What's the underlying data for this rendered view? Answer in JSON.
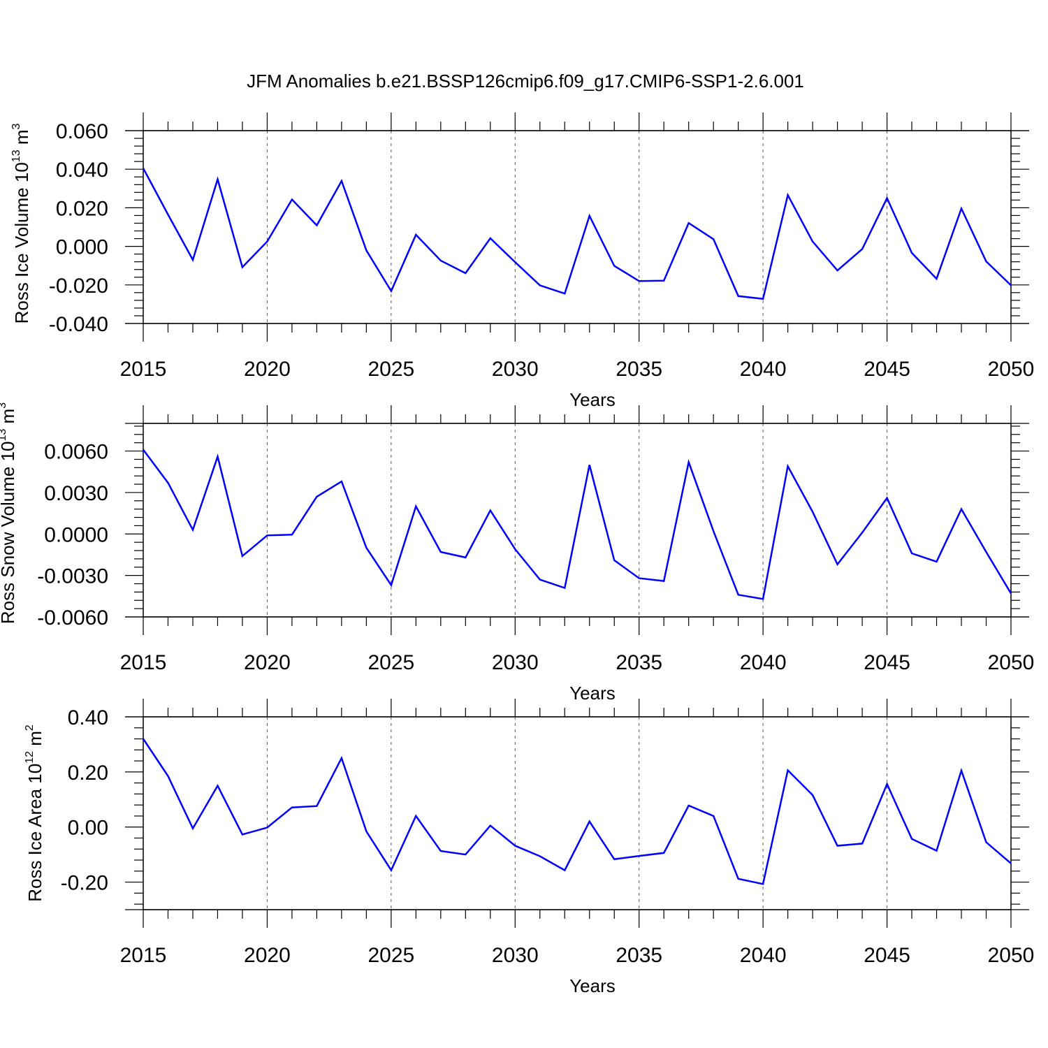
{
  "title": "JFM Anomalies b.e21.BSSP126cmip6.f09_g17.CMIP6-SSP1-2.6.001",
  "colors": {
    "series": "#0000ff",
    "frame": "#000000",
    "grid": "#555555"
  },
  "chart_data": [
    {
      "type": "line",
      "title": "",
      "xlabel": "Years",
      "ylabel": "Ross Ice Volume 10",
      "ylabel_exp": "13",
      "ylabel_unit": " m",
      "ylabel_unit_exp": "3",
      "grid": "vertical dashed at major x ticks",
      "xlim": [
        2015,
        2050
      ],
      "ylim": [
        -0.04,
        0.06
      ],
      "x_ticks": [
        2015,
        2020,
        2025,
        2030,
        2035,
        2040,
        2045,
        2050
      ],
      "x_tick_labels": [
        "2015",
        "2020",
        "2025",
        "2030",
        "2035",
        "2040",
        "2045",
        "2050"
      ],
      "y_ticks": [
        -0.04,
        -0.02,
        0.0,
        0.02,
        0.04,
        0.06
      ],
      "y_tick_labels": [
        "-0.040",
        "-0.020",
        "0.000",
        "0.020",
        "0.040",
        "0.060"
      ],
      "x": [
        2015,
        2016,
        2017,
        2018,
        2019,
        2020,
        2021,
        2022,
        2023,
        2024,
        2025,
        2026,
        2027,
        2028,
        2029,
        2030,
        2031,
        2032,
        2033,
        2034,
        2035,
        2036,
        2037,
        2038,
        2039,
        2040,
        2041,
        2042,
        2043,
        2044,
        2045,
        2046,
        2047,
        2048,
        2049,
        2050
      ],
      "values": [
        0.0405,
        0.0165,
        -0.007,
        0.0348,
        -0.0108,
        0.0025,
        0.0243,
        0.0109,
        0.0339,
        -0.0021,
        -0.0232,
        0.006,
        -0.0074,
        -0.0139,
        0.0042,
        -0.0082,
        -0.0202,
        -0.0245,
        0.0158,
        -0.0101,
        -0.018,
        -0.0178,
        0.0121,
        0.0037,
        -0.0258,
        -0.0272,
        0.0266,
        0.0025,
        -0.0125,
        -0.0014,
        0.025,
        -0.0034,
        -0.0168,
        0.0196,
        -0.0078,
        -0.0202
      ]
    },
    {
      "type": "line",
      "title": "",
      "xlabel": "Years",
      "ylabel": "Ross Snow Volume 10",
      "ylabel_exp": "13",
      "ylabel_unit": " m",
      "ylabel_unit_exp": "3",
      "grid": "vertical dashed at major x ticks",
      "xlim": [
        2015,
        2050
      ],
      "ylim": [
        -0.006,
        0.008
      ],
      "x_ticks": [
        2015,
        2020,
        2025,
        2030,
        2035,
        2040,
        2045,
        2050
      ],
      "x_tick_labels": [
        "2015",
        "2020",
        "2025",
        "2030",
        "2035",
        "2040",
        "2045",
        "2050"
      ],
      "y_ticks": [
        -0.006,
        -0.003,
        0.0,
        0.003,
        0.006
      ],
      "y_tick_labels": [
        "-0.0060",
        "-0.0030",
        "0.0000",
        "0.0030",
        "0.0060"
      ],
      "x": [
        2015,
        2016,
        2017,
        2018,
        2019,
        2020,
        2021,
        2022,
        2023,
        2024,
        2025,
        2026,
        2027,
        2028,
        2029,
        2030,
        2031,
        2032,
        2033,
        2034,
        2035,
        2036,
        2037,
        2038,
        2039,
        2040,
        2041,
        2042,
        2043,
        2044,
        2045,
        2046,
        2047,
        2048,
        2049,
        2050
      ],
      "values": [
        0.0061,
        0.0037,
        0.0003,
        0.0056,
        -0.0016,
        -0.0001,
        -5e-05,
        0.0027,
        0.0038,
        -0.001,
        -0.0037,
        0.002,
        -0.0013,
        -0.0017,
        0.0017,
        -0.0011,
        -0.0033,
        -0.0039,
        0.005,
        -0.0019,
        -0.0032,
        -0.0034,
        0.0052,
        0.0002,
        -0.0044,
        -0.0047,
        0.0049,
        0.0016,
        -0.0022,
        0.0001,
        0.0026,
        -0.0014,
        -0.002,
        0.0018,
        -0.0013,
        -0.0043
      ]
    },
    {
      "type": "line",
      "title": "",
      "xlabel": "Years",
      "ylabel": "Ross Ice Area 10",
      "ylabel_exp": "12",
      "ylabel_unit": " m",
      "ylabel_unit_exp": "2",
      "grid": "vertical dashed at major x ticks",
      "xlim": [
        2015,
        2050
      ],
      "ylim": [
        -0.3,
        0.4
      ],
      "x_ticks": [
        2015,
        2020,
        2025,
        2030,
        2035,
        2040,
        2045,
        2050
      ],
      "x_tick_labels": [
        "2015",
        "2020",
        "2025",
        "2030",
        "2035",
        "2040",
        "2045",
        "2050"
      ],
      "y_ticks": [
        -0.2,
        0.0,
        0.2,
        0.4
      ],
      "y_tick_labels": [
        "-0.20",
        "0.00",
        "0.20",
        "0.40"
      ],
      "x": [
        2015,
        2016,
        2017,
        2018,
        2019,
        2020,
        2021,
        2022,
        2023,
        2024,
        2025,
        2026,
        2027,
        2028,
        2029,
        2030,
        2031,
        2032,
        2033,
        2034,
        2035,
        2036,
        2037,
        2038,
        2039,
        2040,
        2041,
        2042,
        2043,
        2044,
        2045,
        2046,
        2047,
        2048,
        2049,
        2050
      ],
      "values": [
        0.32,
        0.185,
        -0.005,
        0.15,
        -0.027,
        -0.002,
        0.071,
        0.076,
        0.25,
        -0.016,
        -0.157,
        0.04,
        -0.087,
        -0.1,
        0.005,
        -0.068,
        -0.106,
        -0.157,
        0.02,
        -0.117,
        -0.105,
        -0.094,
        0.078,
        0.04,
        -0.188,
        -0.207,
        0.206,
        0.116,
        -0.068,
        -0.06,
        0.156,
        -0.043,
        -0.086,
        0.205,
        -0.055,
        -0.132
      ]
    }
  ]
}
